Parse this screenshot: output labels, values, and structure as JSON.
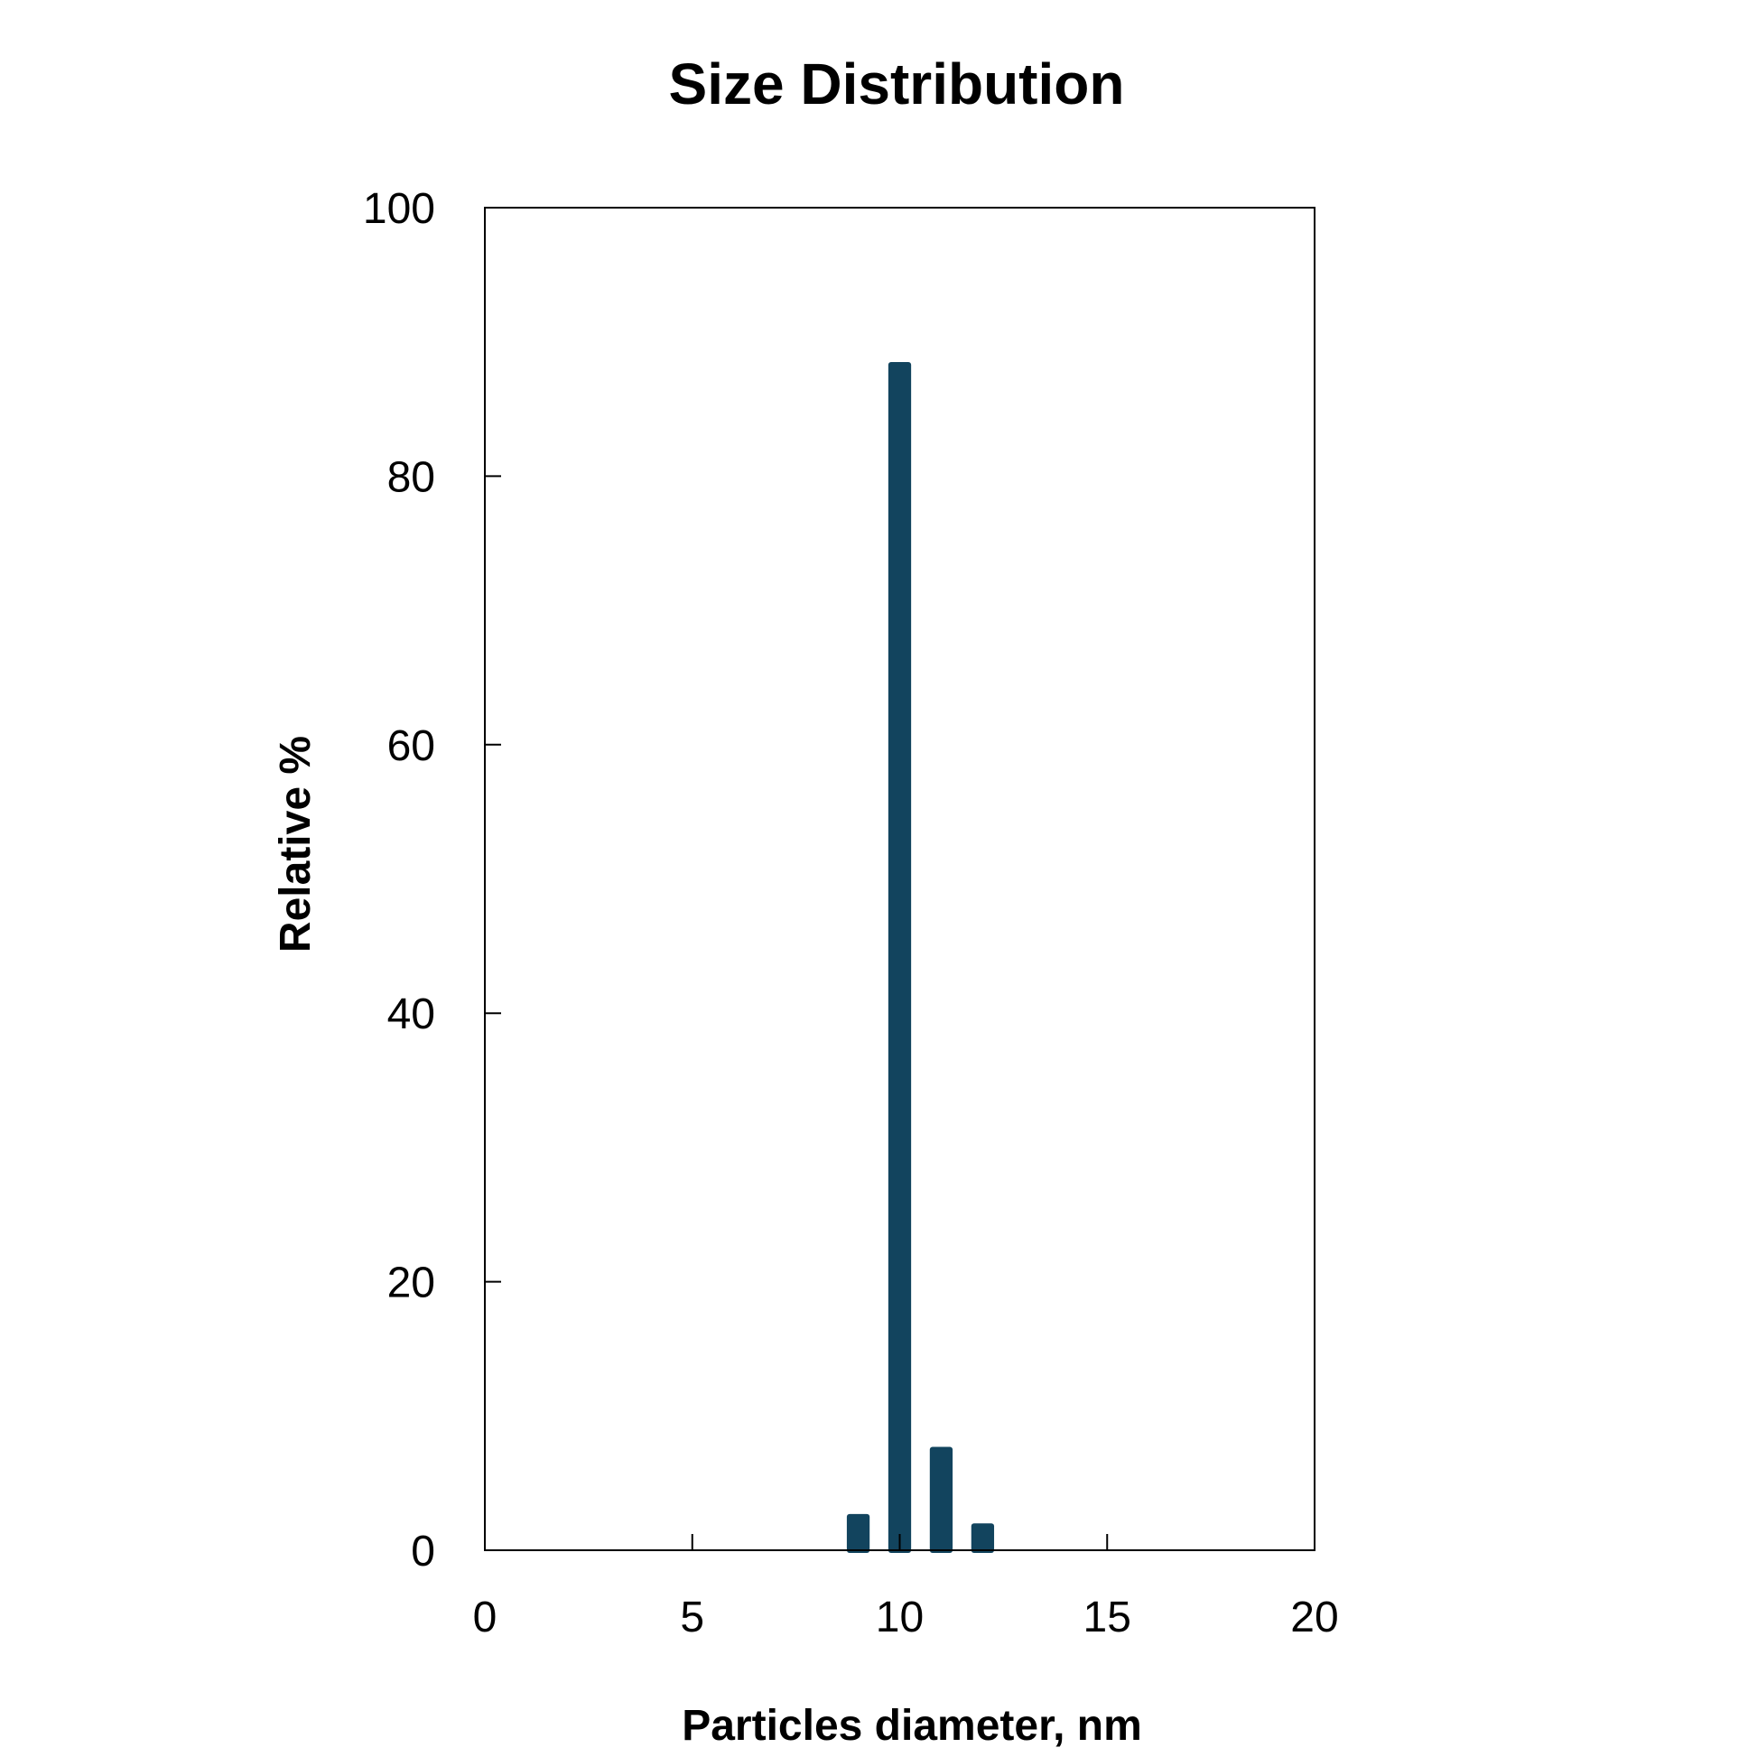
{
  "chart_data": {
    "type": "bar",
    "title": "Size Distribution",
    "xlabel": "Particles diameter, nm",
    "ylabel": "Relative %",
    "xlim": [
      0,
      20
    ],
    "ylim": [
      0,
      100
    ],
    "xticks": [
      0,
      5,
      10,
      15,
      20
    ],
    "yticks": [
      0,
      20,
      40,
      60,
      80,
      100
    ],
    "bar_width": 0.55,
    "color": "#12445e",
    "grid": false,
    "legend": "none",
    "x": [
      9,
      10,
      11,
      12
    ],
    "values": [
      2.7,
      88.5,
      7.7,
      2.0
    ]
  }
}
